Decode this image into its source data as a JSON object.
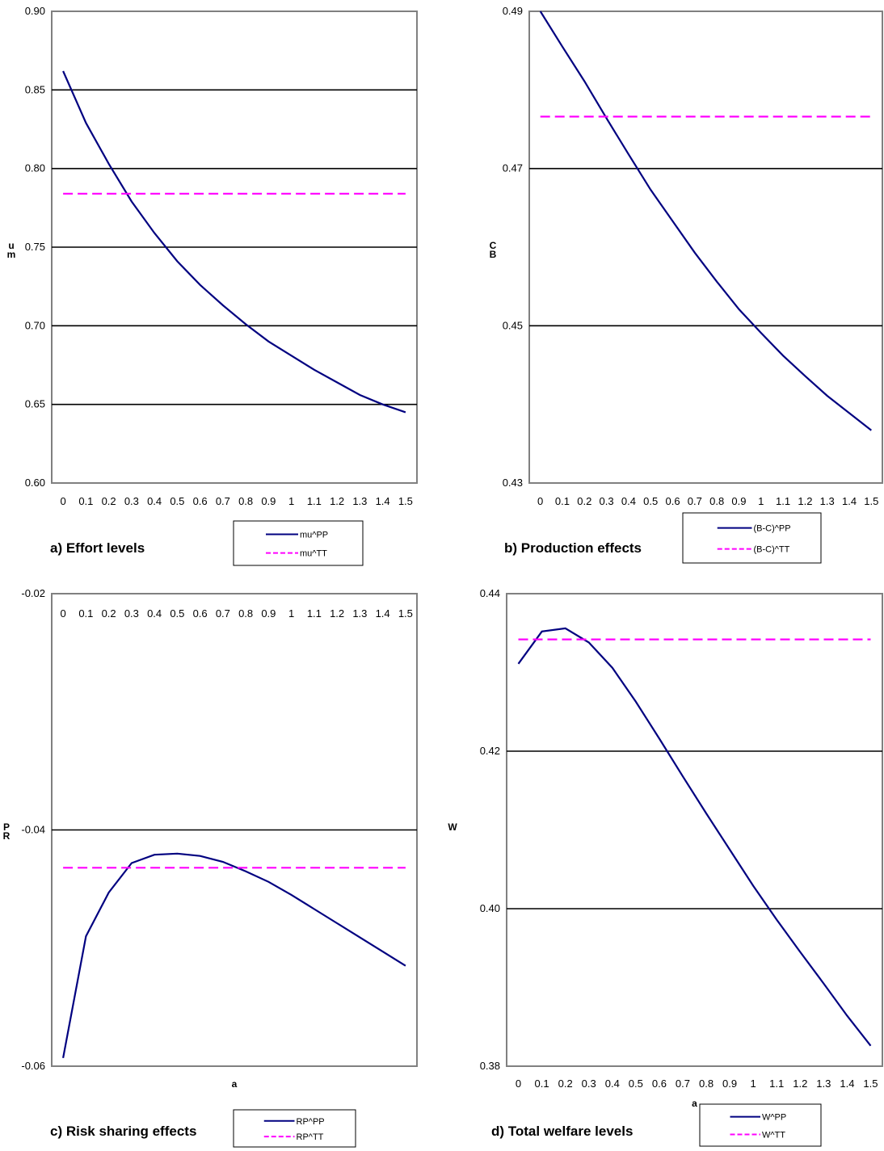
{
  "chart_data": [
    {
      "id": "a",
      "type": "line",
      "caption": "a) Effort levels",
      "ylabel_top": "u",
      "ylabel_bottom": "m",
      "xlabel": "",
      "ylim": [
        0.6,
        0.9
      ],
      "yticks": [
        "0.60",
        "0.65",
        "0.70",
        "0.75",
        "0.80",
        "0.85",
        "0.90"
      ],
      "yticks_values": [
        0.6,
        0.65,
        0.7,
        0.75,
        0.8,
        0.85,
        0.9
      ],
      "grid_values": [
        0.65,
        0.7,
        0.75,
        0.8,
        0.85
      ],
      "xtick_position": "bottom",
      "x": [
        "0",
        "0.1",
        "0.2",
        "0.3",
        "0.4",
        "0.5",
        "0.6",
        "0.7",
        "0.8",
        "0.9",
        "1",
        "1.1",
        "1.2",
        "1.3",
        "1.4",
        "1.5"
      ],
      "series": [
        {
          "name": "mu^PP",
          "style": "solid",
          "color": "#000080",
          "values": [
            0.862,
            0.829,
            0.803,
            0.779,
            0.759,
            0.741,
            0.726,
            0.713,
            0.701,
            0.69,
            0.681,
            0.672,
            0.664,
            0.656,
            0.65,
            0.645
          ]
        },
        {
          "name": "mu^TT",
          "style": "dashed",
          "color": "#ff00ff",
          "values": [
            0.784,
            0.784,
            0.784,
            0.784,
            0.784,
            0.784,
            0.784,
            0.784,
            0.784,
            0.784,
            0.784,
            0.784,
            0.784,
            0.784,
            0.784,
            0.784
          ]
        }
      ]
    },
    {
      "id": "b",
      "type": "line",
      "caption": "b) Production effects",
      "ylabel_top": "C",
      "ylabel_bottom": "B",
      "xlabel": "",
      "ylim": [
        0.43,
        0.49
      ],
      "yticks": [
        "0.43",
        "0.45",
        "0.47",
        "0.49"
      ],
      "yticks_values": [
        0.43,
        0.45,
        0.47,
        0.49
      ],
      "grid_values": [
        0.45,
        0.47
      ],
      "xtick_position": "bottom",
      "x": [
        "0",
        "0.1",
        "0.2",
        "0.3",
        "0.4",
        "0.5",
        "0.6",
        "0.7",
        "0.8",
        "0.9",
        "1",
        "1.1",
        "1.2",
        "1.3",
        "1.4",
        "1.5"
      ],
      "series": [
        {
          "name": "(B-C)^PP",
          "style": "solid",
          "color": "#000080",
          "values": [
            0.49,
            0.4855,
            0.4811,
            0.4764,
            0.4718,
            0.4673,
            0.4633,
            0.4593,
            0.4556,
            0.4521,
            0.4491,
            0.4462,
            0.4436,
            0.4411,
            0.4389,
            0.4367
          ]
        },
        {
          "name": "(B-C)^TT",
          "style": "dashed",
          "color": "#ff00ff",
          "values": [
            0.4766,
            0.4766,
            0.4766,
            0.4766,
            0.4766,
            0.4766,
            0.4766,
            0.4766,
            0.4766,
            0.4766,
            0.4766,
            0.4766,
            0.4766,
            0.4766,
            0.4766,
            0.4766
          ]
        }
      ]
    },
    {
      "id": "c",
      "type": "line",
      "caption": "c) Risk sharing effects",
      "ylabel_top": "P",
      "ylabel_bottom": "R",
      "xlabel": "a",
      "ylim": [
        -0.06,
        -0.02
      ],
      "yticks": [
        "-0.06",
        "-0.04",
        "-0.02"
      ],
      "yticks_values": [
        -0.06,
        -0.04,
        -0.02
      ],
      "grid_values": [
        -0.04
      ],
      "xtick_position": "top",
      "x": [
        "0",
        "0.1",
        "0.2",
        "0.3",
        "0.4",
        "0.5",
        "0.6",
        "0.7",
        "0.8",
        "0.9",
        "1",
        "1.1",
        "1.2",
        "1.3",
        "1.4",
        "1.5"
      ],
      "series": [
        {
          "name": "RP^PP",
          "style": "solid",
          "color": "#000080",
          "values": [
            -0.0593,
            -0.049,
            -0.0453,
            -0.0428,
            -0.0421,
            -0.042,
            -0.0422,
            -0.0427,
            -0.0435,
            -0.0444,
            -0.0455,
            -0.0467,
            -0.0479,
            -0.0491,
            -0.0503,
            -0.0515
          ]
        },
        {
          "name": "RP^TT",
          "style": "dashed",
          "color": "#ff00ff",
          "values": [
            -0.0432,
            -0.0432,
            -0.0432,
            -0.0432,
            -0.0432,
            -0.0432,
            -0.0432,
            -0.0432,
            -0.0432,
            -0.0432,
            -0.0432,
            -0.0432,
            -0.0432,
            -0.0432,
            -0.0432,
            -0.0432
          ]
        }
      ]
    },
    {
      "id": "d",
      "type": "line",
      "caption": "d) Total welfare levels",
      "ylabel_top": "W",
      "ylabel_bottom": "",
      "xlabel": "a",
      "ylim": [
        0.38,
        0.44
      ],
      "yticks": [
        "0.38",
        "0.40",
        "0.42",
        "0.44"
      ],
      "yticks_values": [
        0.38,
        0.4,
        0.42,
        0.44
      ],
      "grid_values": [
        0.4,
        0.42
      ],
      "xtick_position": "bottom",
      "x": [
        "0",
        "0.1",
        "0.2",
        "0.3",
        "0.4",
        "0.5",
        "0.6",
        "0.7",
        "0.8",
        "0.9",
        "1",
        "1.1",
        "1.2",
        "1.3",
        "1.4",
        "1.5"
      ],
      "series": [
        {
          "name": "W^PP",
          "style": "solid",
          "color": "#000080",
          "values": [
            0.4311,
            0.4352,
            0.4356,
            0.4338,
            0.4306,
            0.4263,
            0.4216,
            0.4168,
            0.4121,
            0.4075,
            0.4029,
            0.3986,
            0.3945,
            0.3905,
            0.3864,
            0.3826
          ]
        },
        {
          "name": "W^TT",
          "style": "dashed",
          "color": "#ff00ff",
          "values": [
            0.4342,
            0.4342,
            0.4342,
            0.4342,
            0.4342,
            0.4342,
            0.4342,
            0.4342,
            0.4342,
            0.4342,
            0.4342,
            0.4342,
            0.4342,
            0.4342,
            0.4342,
            0.4342
          ]
        }
      ]
    }
  ]
}
